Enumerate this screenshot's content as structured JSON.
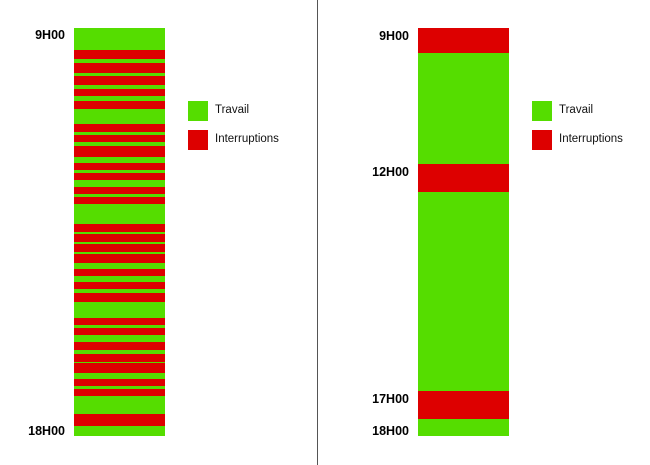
{
  "colors": {
    "work": "#55dd00",
    "interruption": "#dd0000"
  },
  "legend": {
    "work_label": "Travail",
    "interruption_label": "Interruptions"
  },
  "left": {
    "start_label": "9H00",
    "end_label": "18H00",
    "interruptions": [
      [
        0.055,
        0.075
      ],
      [
        0.085,
        0.11
      ],
      [
        0.118,
        0.14
      ],
      [
        0.15,
        0.168
      ],
      [
        0.178,
        0.198
      ],
      [
        0.235,
        0.255
      ],
      [
        0.262,
        0.28
      ],
      [
        0.288,
        0.315
      ],
      [
        0.33,
        0.348
      ],
      [
        0.355,
        0.372
      ],
      [
        0.39,
        0.408
      ],
      [
        0.415,
        0.432
      ],
      [
        0.48,
        0.5
      ],
      [
        0.505,
        0.525
      ],
      [
        0.53,
        0.55
      ],
      [
        0.555,
        0.575
      ],
      [
        0.59,
        0.608
      ],
      [
        0.622,
        0.64
      ],
      [
        0.65,
        0.672
      ],
      [
        0.71,
        0.728
      ],
      [
        0.735,
        0.752
      ],
      [
        0.77,
        0.79
      ],
      [
        0.8,
        0.818
      ],
      [
        0.822,
        0.845
      ],
      [
        0.86,
        0.878
      ],
      [
        0.885,
        0.902
      ],
      [
        0.945,
        0.975
      ]
    ]
  },
  "right": {
    "labels": [
      {
        "text": "9H00",
        "hour": 9
      },
      {
        "text": "12H00",
        "hour": 12
      },
      {
        "text": "17H00",
        "hour": 17
      },
      {
        "text": "18H00",
        "hour": 18
      }
    ],
    "interruptions": [
      [
        9.0,
        9.55
      ],
      [
        12.0,
        12.62
      ],
      [
        17.0,
        17.62
      ]
    ]
  }
}
